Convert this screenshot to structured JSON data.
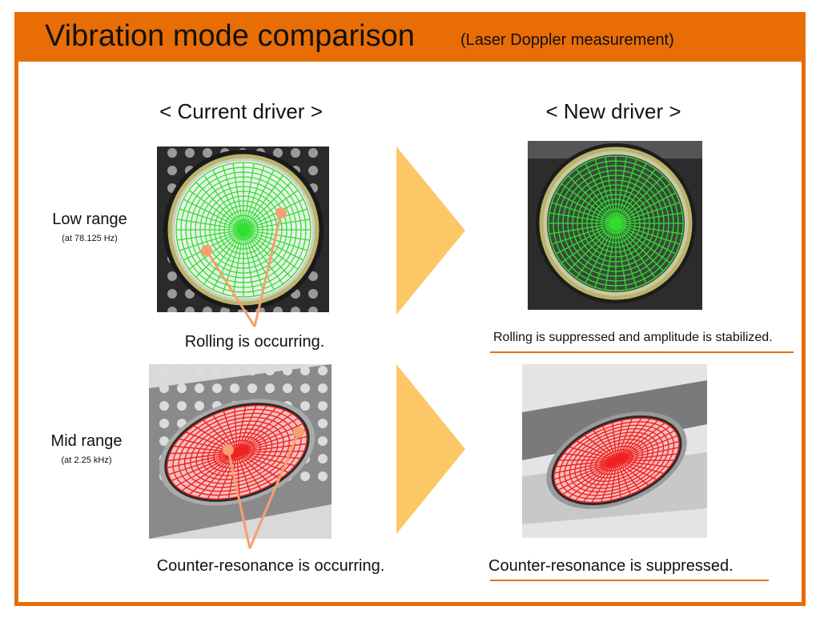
{
  "header": {
    "title": "Vibration mode comparison",
    "subtitle": "(Laser Doppler measurement)"
  },
  "columns": {
    "current": "< Current driver >",
    "new": "< New driver >"
  },
  "rows": [
    {
      "label": "Low range",
      "condition": "(at 78.125 Hz)",
      "current_note": "Rolling is occurring.",
      "new_note": "Rolling is suppressed and amplitude is stabilized."
    },
    {
      "label": "Mid range",
      "condition": "(at 2.25 kHz)",
      "current_note": "Counter-resonance is occurring.",
      "new_note": "Counter-resonance is suppressed."
    }
  ],
  "colors": {
    "frame": "#e96d05",
    "arrow": "#fcc766",
    "callout": "#f4a070",
    "low_mesh": "#33dd33",
    "mid_mesh": "#ee2222"
  }
}
